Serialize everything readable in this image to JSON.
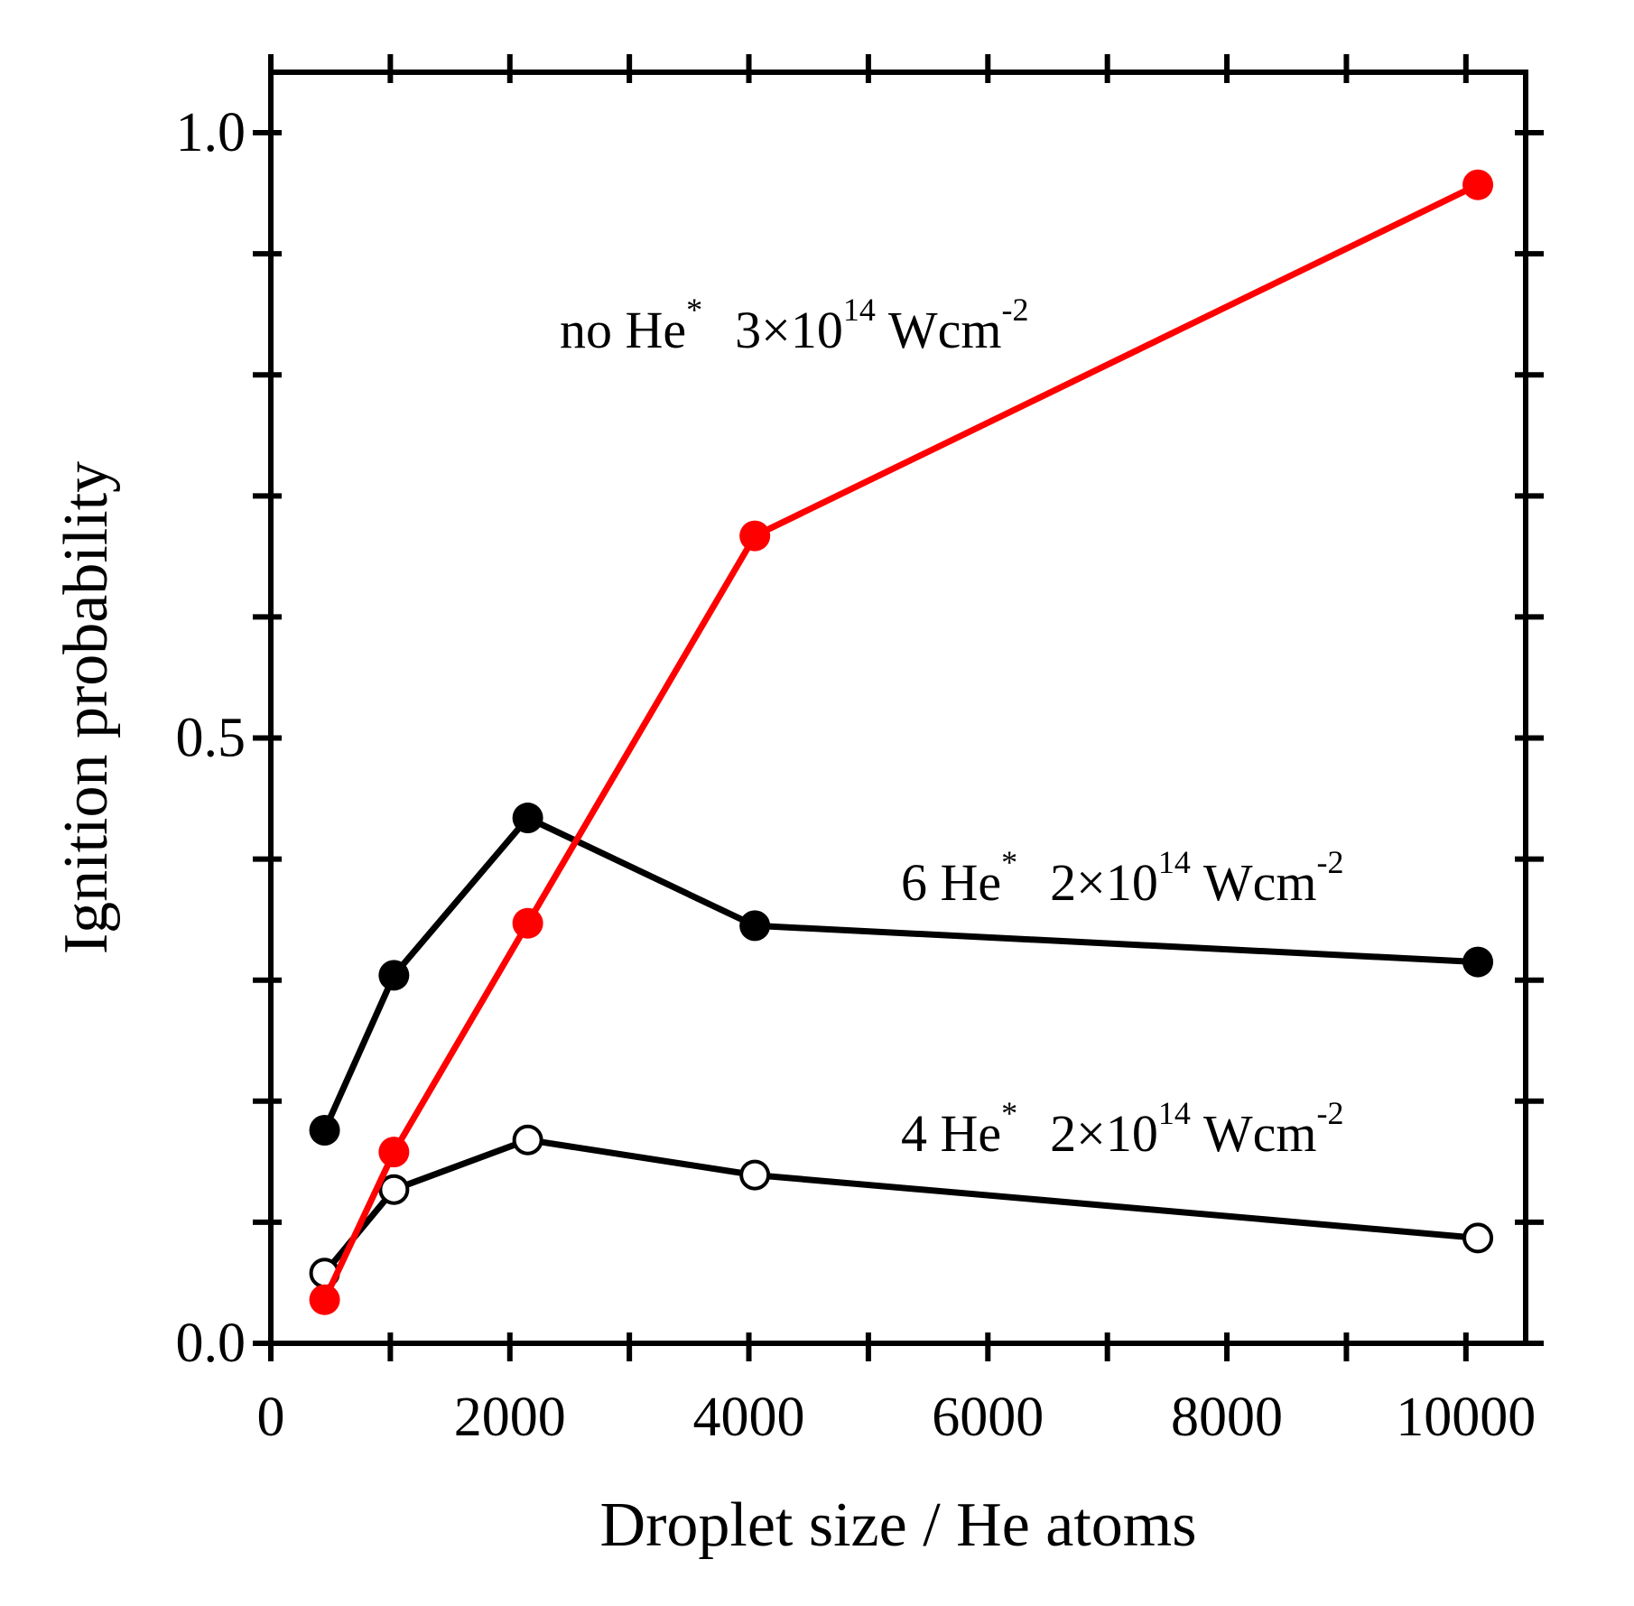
{
  "chart_data": {
    "type": "line",
    "xlabel": "Droplet size / He atoms",
    "ylabel": "Ignition probability",
    "xlim": [
      0,
      10500
    ],
    "ylim": [
      0,
      1.05
    ],
    "x_ticks": [
      0,
      2000,
      4000,
      6000,
      8000,
      10000
    ],
    "x_tick_labels": [
      "0",
      "2000",
      "4000",
      "6000",
      "8000",
      "10000"
    ],
    "x_minor_ticks": [
      1000,
      3000,
      5000,
      7000,
      9000
    ],
    "y_ticks": [
      0.0,
      0.5,
      1.0
    ],
    "y_tick_labels": [
      "0.0",
      "0.5",
      "1.0"
    ],
    "y_minor_ticks": [
      0.1,
      0.2,
      0.3,
      0.4,
      0.6,
      0.7,
      0.8,
      0.9
    ],
    "grid": false,
    "series": [
      {
        "name": "no He* 3x10^14 Wcm-2",
        "color": "#ff0000",
        "marker": "filled-circle",
        "x": [
          450,
          1030,
          2150,
          4050,
          10100
        ],
        "y": [
          0.036,
          0.158,
          0.347,
          0.667,
          0.957
        ]
      },
      {
        "name": "6 He* 2x10^14 Wcm-2",
        "color": "#000000",
        "marker": "filled-circle",
        "x": [
          450,
          1030,
          2150,
          4050,
          10100
        ],
        "y": [
          0.176,
          0.304,
          0.434,
          0.345,
          0.315
        ]
      },
      {
        "name": "4 He* 2x10^14 Wcm-2",
        "color": "#000000",
        "marker": "open-circle",
        "x": [
          450,
          1030,
          2150,
          4050,
          10100
        ],
        "y": [
          0.058,
          0.127,
          0.168,
          0.139,
          0.087
        ]
      }
    ],
    "annotations": [
      {
        "series": 0,
        "main": "no He",
        "star": "*",
        "mid": "3×10",
        "exp": "14",
        "unit": "Wcm",
        "unit_exp": "-2"
      },
      {
        "series": 1,
        "main": "6 He",
        "star": "*",
        "mid": "2×10",
        "exp": "14",
        "unit": "Wcm",
        "unit_exp": "-2"
      },
      {
        "series": 2,
        "main": "4 He",
        "star": "*",
        "mid": "2×10",
        "exp": "14",
        "unit": "Wcm",
        "unit_exp": "-2"
      }
    ]
  }
}
